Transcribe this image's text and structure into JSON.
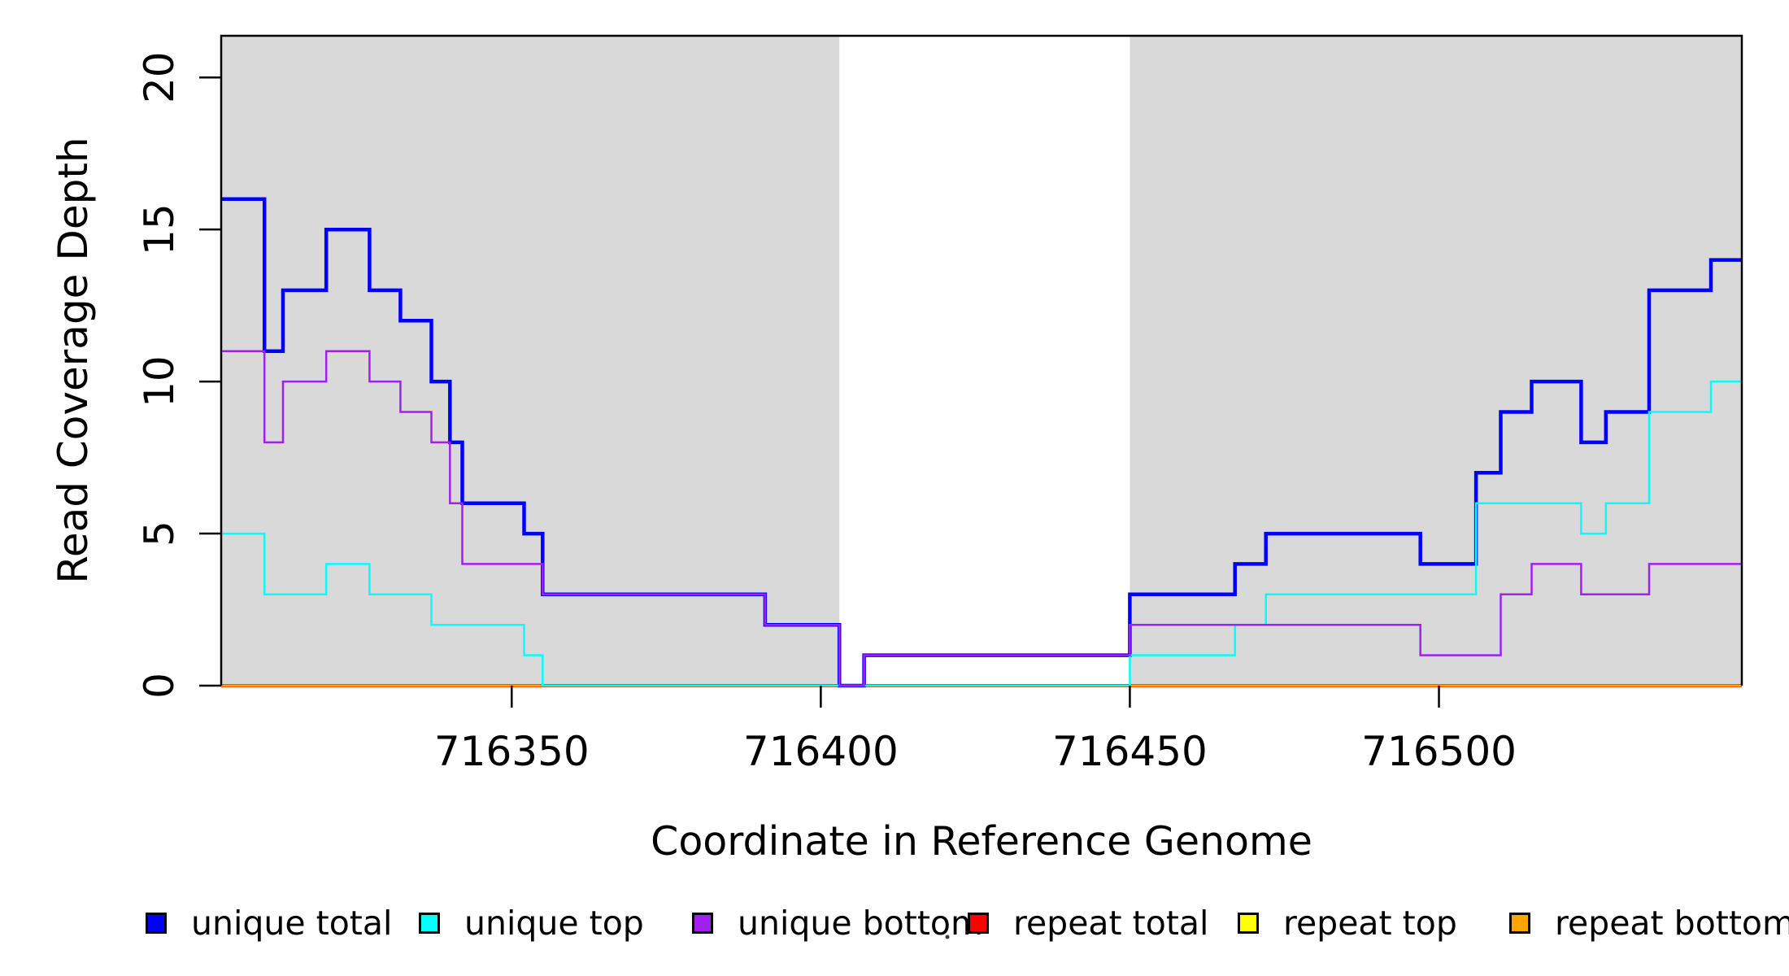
{
  "chart_data": {
    "type": "line",
    "subtype": "step-coverage-plot",
    "title": "",
    "xlabel": "Coordinate in Reference Genome",
    "ylabel": "Read Coverage Depth",
    "xlim": [
      716303,
      716549
    ],
    "ylim": [
      0,
      21.37
    ],
    "x_ticks": [
      "716350",
      "716400",
      "716450",
      "716500"
    ],
    "x_tick_values": [
      716350,
      716400,
      716450,
      716500
    ],
    "y_ticks": [
      "0",
      "5",
      "10",
      "15",
      "20"
    ],
    "y_tick_values": [
      0,
      5,
      10,
      15,
      20
    ],
    "grid": false,
    "legend_position": "bottom",
    "background_color": "#ffffff",
    "shaded_region_color": "#d9d9d9",
    "shaded_regions": [
      {
        "x0": 716303,
        "x1": 716403
      },
      {
        "x0": 716450,
        "x1": 716549
      }
    ],
    "series": [
      {
        "name": "repeat total",
        "color": "#ff0000",
        "line_width": 4,
        "segments": [
          [
            716303,
            716549,
            0
          ]
        ]
      },
      {
        "name": "repeat top",
        "color": "#ffff00",
        "line_width": 3,
        "segments": [
          [
            716303,
            716549,
            0
          ]
        ]
      },
      {
        "name": "repeat bottom",
        "color": "#ffa500",
        "line_width": 3,
        "segments": [
          [
            716303,
            716549,
            0
          ]
        ]
      },
      {
        "name": "unique total",
        "color": "#0000ff",
        "line_width": 4.5,
        "segments": [
          [
            716303,
            716310,
            16
          ],
          [
            716310,
            716313,
            11
          ],
          [
            716313,
            716320,
            13
          ],
          [
            716320,
            716327,
            15
          ],
          [
            716327,
            716332,
            13
          ],
          [
            716332,
            716337,
            12
          ],
          [
            716337,
            716340,
            10
          ],
          [
            716340,
            716342,
            8
          ],
          [
            716342,
            716352,
            6
          ],
          [
            716352,
            716355,
            5
          ],
          [
            716355,
            716391,
            3
          ],
          [
            716391,
            716403,
            2
          ],
          [
            716403,
            716407,
            0
          ],
          [
            716407,
            716450,
            1
          ],
          [
            716450,
            716467,
            3
          ],
          [
            716467,
            716472,
            4
          ],
          [
            716472,
            716497,
            5
          ],
          [
            716497,
            716506,
            4
          ],
          [
            716506,
            716510,
            7
          ],
          [
            716510,
            716515,
            9
          ],
          [
            716515,
            716523,
            10
          ],
          [
            716523,
            716527,
            8
          ],
          [
            716527,
            716534,
            9
          ],
          [
            716534,
            716544,
            13
          ],
          [
            716544,
            716549,
            14
          ]
        ]
      },
      {
        "name": "unique top",
        "color": "#00ffff",
        "line_width": 2.5,
        "segments": [
          [
            716303,
            716310,
            5
          ],
          [
            716310,
            716320,
            3
          ],
          [
            716320,
            716327,
            4
          ],
          [
            716327,
            716337,
            3
          ],
          [
            716337,
            716352,
            2
          ],
          [
            716352,
            716355,
            1
          ],
          [
            716355,
            716450,
            0
          ],
          [
            716450,
            716467,
            1
          ],
          [
            716467,
            716472,
            2
          ],
          [
            716472,
            716506,
            3
          ],
          [
            716506,
            716523,
            6
          ],
          [
            716523,
            716527,
            5
          ],
          [
            716527,
            716534,
            6
          ],
          [
            716534,
            716544,
            9
          ],
          [
            716544,
            716549,
            10
          ]
        ]
      },
      {
        "name": "unique bottom",
        "color": "#a020f0",
        "line_width": 2.5,
        "segments": [
          [
            716303,
            716310,
            11
          ],
          [
            716310,
            716313,
            8
          ],
          [
            716313,
            716320,
            10
          ],
          [
            716320,
            716327,
            11
          ],
          [
            716327,
            716332,
            10
          ],
          [
            716332,
            716337,
            9
          ],
          [
            716337,
            716340,
            8
          ],
          [
            716340,
            716342,
            6
          ],
          [
            716342,
            716355,
            4
          ],
          [
            716355,
            716391,
            3
          ],
          [
            716391,
            716403,
            2
          ],
          [
            716403,
            716407,
            0
          ],
          [
            716407,
            716450,
            1
          ],
          [
            716450,
            716497,
            2
          ],
          [
            716497,
            716510,
            1
          ],
          [
            716510,
            716515,
            3
          ],
          [
            716515,
            716523,
            4
          ],
          [
            716523,
            716534,
            3
          ],
          [
            716534,
            716549,
            4
          ]
        ]
      }
    ]
  },
  "legend": {
    "items": [
      {
        "label": "unique total",
        "color": "#0000ff"
      },
      {
        "label": "unique top",
        "color": "#00ffff"
      },
      {
        "label": "unique bottom",
        "color": "#a020f0"
      },
      {
        "label": "repeat total",
        "color": "#ff0000"
      },
      {
        "label": "repeat top",
        "color": "#ffff00"
      },
      {
        "label": "repeat bottom",
        "color": "#ffa500"
      }
    ]
  },
  "axis_colors": {
    "axis_line": "#000000",
    "tick_label": "#000000"
  }
}
